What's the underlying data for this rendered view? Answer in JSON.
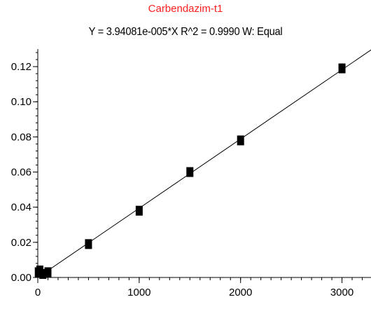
{
  "chart_data": {
    "type": "scatter",
    "title": "Carbendazim-t1",
    "subtitle": "Y = 3.94081e-005*X    R^2 = 0.9990    W: Equal",
    "xlabel": "",
    "ylabel": "",
    "xlim": [
      0,
      3300
    ],
    "ylim": [
      0,
      0.13
    ],
    "x_ticks": [
      0,
      1000,
      2000,
      3000
    ],
    "x_tick_labels": [
      "0",
      "1000",
      "2000",
      "3000"
    ],
    "y_ticks": [
      0,
      0.02,
      0.04,
      0.06,
      0.08,
      0.1,
      0.12
    ],
    "y_tick_labels": [
      "0.00",
      "0.02",
      "0.04",
      "0.06",
      "0.08",
      "0.10",
      "0.12"
    ],
    "grid": false,
    "series": [
      {
        "points": [
          {
            "x": 5,
            "y": 0.003
          },
          {
            "x": 20,
            "y": 0.004
          },
          {
            "x": 50,
            "y": 0.002
          },
          {
            "x": 100,
            "y": 0.003
          },
          {
            "x": 500,
            "y": 0.019
          },
          {
            "x": 1000,
            "y": 0.038
          },
          {
            "x": 1500,
            "y": 0.06
          },
          {
            "x": 2000,
            "y": 0.078
          },
          {
            "x": 3000,
            "y": 0.119
          }
        ]
      }
    ],
    "fit_line": {
      "slope": 3.94081e-05,
      "intercept": 0
    },
    "colors": {
      "title": "#ff1e1e",
      "marker": "#000000",
      "line": "#000000"
    }
  }
}
